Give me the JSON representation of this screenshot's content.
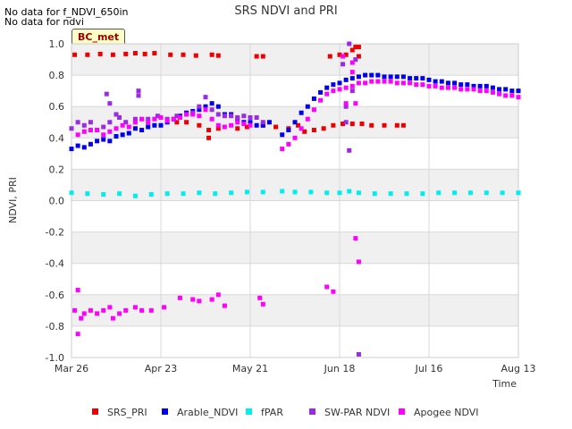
{
  "chart_data": {
    "type": "scatter",
    "title": "SRS NDVI and PRI",
    "xlabel": "Time",
    "ylabel": "NDVI, PRI",
    "ylim": [
      -1.0,
      1.0
    ],
    "xlim_day": [
      0,
      140
    ],
    "yticks": [
      {
        "value": -1.0,
        "label": "-1.0"
      },
      {
        "value": -0.8,
        "label": "-0.8"
      },
      {
        "value": -0.6,
        "label": "-0.6"
      },
      {
        "value": -0.4,
        "label": "-0.4"
      },
      {
        "value": -0.2,
        "label": "-0.2"
      },
      {
        "value": 0.0,
        "label": "0.0"
      },
      {
        "value": 0.2,
        "label": "0.2"
      },
      {
        "value": 0.4,
        "label": "0.4"
      },
      {
        "value": 0.6,
        "label": "0.6"
      },
      {
        "value": 0.8,
        "label": "0.8"
      },
      {
        "value": 1.0,
        "label": "1.0"
      }
    ],
    "xticks": [
      {
        "day": 0,
        "label": "Mar 26"
      },
      {
        "day": 28,
        "label": "Apr 23"
      },
      {
        "day": 56,
        "label": "May 21"
      },
      {
        "day": 84,
        "label": "Jun 18"
      },
      {
        "day": 112,
        "label": "Jul 16"
      },
      {
        "day": 140,
        "label": "Aug 13"
      }
    ],
    "notes": [
      "No data for f_NDVI_650in",
      "No data for ndvi"
    ],
    "badge": "BC_met",
    "legend_position": "bottom",
    "series": [
      {
        "name": "SRS_PRI",
        "color": "#ee0000",
        "points": [
          [
            1,
            0.93
          ],
          [
            5,
            0.93
          ],
          [
            9,
            0.935
          ],
          [
            13,
            0.93
          ],
          [
            17,
            0.935
          ],
          [
            20,
            0.94
          ],
          [
            23,
            0.935
          ],
          [
            26,
            0.94
          ],
          [
            31,
            0.93
          ],
          [
            35,
            0.93
          ],
          [
            39,
            0.925
          ],
          [
            44,
            0.93
          ],
          [
            46,
            0.925
          ],
          [
            58,
            0.92
          ],
          [
            60,
            0.92
          ],
          [
            81,
            0.92
          ],
          [
            84,
            0.93
          ],
          [
            86,
            0.93
          ],
          [
            88,
            0.96
          ],
          [
            89,
            0.98
          ],
          [
            90,
            0.98
          ],
          [
            90,
            0.92
          ],
          [
            33,
            0.5
          ],
          [
            36,
            0.5
          ],
          [
            40,
            0.48
          ],
          [
            43,
            0.45
          ],
          [
            43,
            0.4
          ],
          [
            46,
            0.46
          ],
          [
            52,
            0.46
          ],
          [
            55,
            0.47
          ],
          [
            60,
            0.48
          ],
          [
            64,
            0.47
          ],
          [
            68,
            0.46
          ],
          [
            71,
            0.48
          ],
          [
            73,
            0.44
          ],
          [
            76,
            0.45
          ],
          [
            79,
            0.46
          ],
          [
            82,
            0.48
          ],
          [
            85,
            0.49
          ],
          [
            88,
            0.49
          ],
          [
            91,
            0.49
          ],
          [
            94,
            0.48
          ],
          [
            98,
            0.48
          ],
          [
            102,
            0.48
          ],
          [
            104,
            0.48
          ]
        ]
      },
      {
        "name": "Arable_NDVI",
        "color": "#0000ee",
        "points": [
          [
            0,
            0.33
          ],
          [
            2,
            0.35
          ],
          [
            4,
            0.34
          ],
          [
            6,
            0.36
          ],
          [
            8,
            0.38
          ],
          [
            10,
            0.39
          ],
          [
            12,
            0.38
          ],
          [
            14,
            0.41
          ],
          [
            16,
            0.42
          ],
          [
            18,
            0.43
          ],
          [
            20,
            0.46
          ],
          [
            22,
            0.45
          ],
          [
            24,
            0.47
          ],
          [
            26,
            0.48
          ],
          [
            28,
            0.48
          ],
          [
            30,
            0.5
          ],
          [
            32,
            0.52
          ],
          [
            34,
            0.54
          ],
          [
            36,
            0.56
          ],
          [
            38,
            0.57
          ],
          [
            40,
            0.58
          ],
          [
            42,
            0.6
          ],
          [
            44,
            0.62
          ],
          [
            46,
            0.6
          ],
          [
            48,
            0.55
          ],
          [
            50,
            0.55
          ],
          [
            52,
            0.52
          ],
          [
            54,
            0.5
          ],
          [
            56,
            0.5
          ],
          [
            58,
            0.48
          ],
          [
            60,
            0.48
          ],
          [
            62,
            0.5
          ],
          [
            66,
            0.42
          ],
          [
            68,
            0.45
          ],
          [
            70,
            0.5
          ],
          [
            72,
            0.56
          ],
          [
            74,
            0.6
          ],
          [
            76,
            0.65
          ],
          [
            78,
            0.69
          ],
          [
            80,
            0.72
          ],
          [
            82,
            0.74
          ],
          [
            84,
            0.75
          ],
          [
            86,
            0.77
          ],
          [
            88,
            0.78
          ],
          [
            90,
            0.79
          ],
          [
            92,
            0.8
          ],
          [
            94,
            0.8
          ],
          [
            96,
            0.8
          ],
          [
            98,
            0.79
          ],
          [
            100,
            0.79
          ],
          [
            102,
            0.79
          ],
          [
            104,
            0.79
          ],
          [
            106,
            0.78
          ],
          [
            108,
            0.78
          ],
          [
            110,
            0.78
          ],
          [
            112,
            0.77
          ],
          [
            114,
            0.76
          ],
          [
            116,
            0.76
          ],
          [
            118,
            0.75
          ],
          [
            120,
            0.75
          ],
          [
            122,
            0.74
          ],
          [
            124,
            0.74
          ],
          [
            126,
            0.73
          ],
          [
            128,
            0.73
          ],
          [
            130,
            0.73
          ],
          [
            132,
            0.72
          ],
          [
            134,
            0.71
          ],
          [
            136,
            0.71
          ],
          [
            138,
            0.7
          ],
          [
            140,
            0.7
          ]
        ]
      },
      {
        "name": "fPAR",
        "color": "#00eeee",
        "points": [
          [
            0,
            0.05
          ],
          [
            5,
            0.045
          ],
          [
            10,
            0.04
          ],
          [
            15,
            0.045
          ],
          [
            20,
            0.03
          ],
          [
            25,
            0.04
          ],
          [
            30,
            0.045
          ],
          [
            35,
            0.045
          ],
          [
            40,
            0.05
          ],
          [
            45,
            0.045
          ],
          [
            50,
            0.05
          ],
          [
            55,
            0.055
          ],
          [
            60,
            0.055
          ],
          [
            66,
            0.06
          ],
          [
            70,
            0.055
          ],
          [
            75,
            0.055
          ],
          [
            80,
            0.05
          ],
          [
            84,
            0.05
          ],
          [
            87,
            0.06
          ],
          [
            90,
            0.05
          ],
          [
            95,
            0.045
          ],
          [
            100,
            0.045
          ],
          [
            105,
            0.045
          ],
          [
            110,
            0.045
          ],
          [
            115,
            0.05
          ],
          [
            120,
            0.05
          ],
          [
            125,
            0.05
          ],
          [
            130,
            0.05
          ],
          [
            135,
            0.05
          ],
          [
            140,
            0.05
          ]
        ]
      },
      {
        "name": "SW-PAR NDVI",
        "color": "#9a2be2",
        "points": [
          [
            0,
            0.46
          ],
          [
            2,
            0.5
          ],
          [
            4,
            0.48
          ],
          [
            6,
            0.5
          ],
          [
            8,
            0.45
          ],
          [
            10,
            0.47
          ],
          [
            12,
            0.5
          ],
          [
            11,
            0.68
          ],
          [
            12,
            0.62
          ],
          [
            14,
            0.55
          ],
          [
            15,
            0.53
          ],
          [
            17,
            0.5
          ],
          [
            20,
            0.52
          ],
          [
            21,
            0.7
          ],
          [
            21,
            0.67
          ],
          [
            24,
            0.52
          ],
          [
            27,
            0.54
          ],
          [
            30,
            0.52
          ],
          [
            33,
            0.54
          ],
          [
            36,
            0.55
          ],
          [
            38,
            0.56
          ],
          [
            40,
            0.6
          ],
          [
            42,
            0.66
          ],
          [
            44,
            0.58
          ],
          [
            46,
            0.55
          ],
          [
            48,
            0.54
          ],
          [
            50,
            0.54
          ],
          [
            52,
            0.53
          ],
          [
            54,
            0.54
          ],
          [
            56,
            0.53
          ],
          [
            58,
            0.53
          ],
          [
            60,
            0.5
          ],
          [
            86,
            0.6
          ],
          [
            86,
            0.5
          ],
          [
            87,
            1.0
          ],
          [
            89,
            0.9
          ],
          [
            87,
            0.32
          ],
          [
            88,
            0.7
          ],
          [
            90,
            -0.98
          ],
          [
            85,
            0.87
          ]
        ]
      },
      {
        "name": "Apogee NDVI",
        "color": "#ff00ff",
        "points": [
          [
            1,
            -0.7
          ],
          [
            2,
            -0.85
          ],
          [
            3,
            -0.75
          ],
          [
            2,
            -0.57
          ],
          [
            4,
            -0.72
          ],
          [
            6,
            -0.7
          ],
          [
            8,
            -0.72
          ],
          [
            10,
            -0.7
          ],
          [
            12,
            -0.68
          ],
          [
            13,
            -0.75
          ],
          [
            15,
            -0.72
          ],
          [
            17,
            -0.7
          ],
          [
            20,
            -0.68
          ],
          [
            22,
            -0.7
          ],
          [
            25,
            -0.7
          ],
          [
            29,
            -0.68
          ],
          [
            34,
            -0.62
          ],
          [
            38,
            -0.63
          ],
          [
            40,
            -0.64
          ],
          [
            44,
            -0.63
          ],
          [
            46,
            -0.6
          ],
          [
            48,
            -0.67
          ],
          [
            59,
            -0.62
          ],
          [
            60,
            -0.66
          ],
          [
            80,
            -0.55
          ],
          [
            82,
            -0.58
          ],
          [
            89,
            -0.24
          ],
          [
            90,
            -0.39
          ],
          [
            2,
            0.42
          ],
          [
            4,
            0.44
          ],
          [
            6,
            0.45
          ],
          [
            8,
            0.45
          ],
          [
            10,
            0.42
          ],
          [
            12,
            0.44
          ],
          [
            14,
            0.46
          ],
          [
            16,
            0.48
          ],
          [
            18,
            0.47
          ],
          [
            20,
            0.5
          ],
          [
            22,
            0.52
          ],
          [
            24,
            0.5
          ],
          [
            26,
            0.52
          ],
          [
            28,
            0.53
          ],
          [
            30,
            0.51
          ],
          [
            32,
            0.52
          ],
          [
            34,
            0.53
          ],
          [
            36,
            0.55
          ],
          [
            38,
            0.55
          ],
          [
            40,
            0.54
          ],
          [
            42,
            0.58
          ],
          [
            44,
            0.52
          ],
          [
            46,
            0.48
          ],
          [
            48,
            0.47
          ],
          [
            50,
            0.48
          ],
          [
            52,
            0.5
          ],
          [
            54,
            0.49
          ],
          [
            56,
            0.48
          ],
          [
            66,
            0.33
          ],
          [
            68,
            0.36
          ],
          [
            70,
            0.4
          ],
          [
            72,
            0.46
          ],
          [
            74,
            0.52
          ],
          [
            76,
            0.58
          ],
          [
            78,
            0.64
          ],
          [
            80,
            0.68
          ],
          [
            82,
            0.7
          ],
          [
            84,
            0.71
          ],
          [
            86,
            0.72
          ],
          [
            88,
            0.73
          ],
          [
            90,
            0.75
          ],
          [
            92,
            0.75
          ],
          [
            94,
            0.76
          ],
          [
            96,
            0.76
          ],
          [
            98,
            0.76
          ],
          [
            100,
            0.76
          ],
          [
            102,
            0.75
          ],
          [
            104,
            0.75
          ],
          [
            106,
            0.75
          ],
          [
            108,
            0.74
          ],
          [
            110,
            0.74
          ],
          [
            112,
            0.73
          ],
          [
            114,
            0.73
          ],
          [
            116,
            0.72
          ],
          [
            118,
            0.72
          ],
          [
            120,
            0.72
          ],
          [
            122,
            0.71
          ],
          [
            124,
            0.71
          ],
          [
            126,
            0.71
          ],
          [
            128,
            0.7
          ],
          [
            130,
            0.7
          ],
          [
            132,
            0.69
          ],
          [
            134,
            0.68
          ],
          [
            136,
            0.67
          ],
          [
            138,
            0.67
          ],
          [
            140,
            0.66
          ],
          [
            85,
            0.92
          ],
          [
            88,
            0.88
          ],
          [
            89,
            0.62
          ],
          [
            86,
            0.62
          ],
          [
            88,
            0.82
          ]
        ]
      }
    ]
  }
}
